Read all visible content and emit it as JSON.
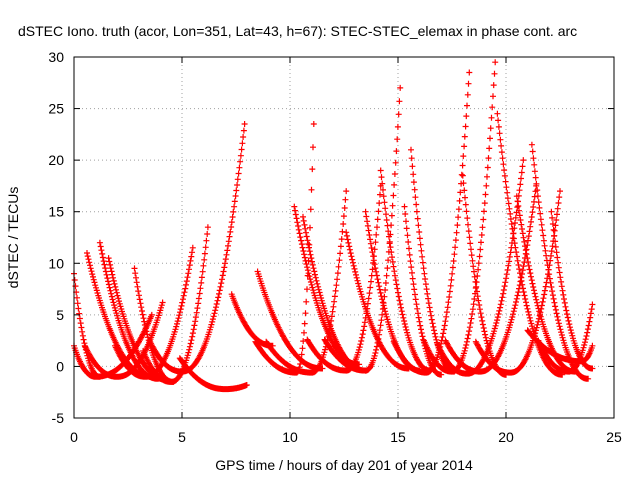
{
  "chart_data": {
    "type": "scatter",
    "title": "dSTEC Iono. truth (acor, Lon=351, Lat=43, h=67): STEC-STEC_elemax in phase cont. arc",
    "xlabel": "GPS time / hours of day 201 of year 2014",
    "ylabel": "dSTEC  / TECUs",
    "xlim": [
      0,
      25
    ],
    "ylim": [
      -5,
      30
    ],
    "xticks": [
      0,
      5,
      10,
      15,
      20,
      25
    ],
    "yticks": [
      -5,
      0,
      5,
      10,
      15,
      20,
      25,
      30
    ],
    "grid": true,
    "marker": "+",
    "series_color": "#ff0000",
    "arcs": [
      {
        "start": 0.0,
        "min_t": 0.0,
        "min_v": 9.0,
        "end": 1.2,
        "end_v": -1.0
      },
      {
        "start": 0.5,
        "min_t": 2.0,
        "min_v": -1.0,
        "end": 4.1,
        "end_v": 6.2
      },
      {
        "start": 0.0,
        "min_t": 1.0,
        "min_v": -1.0,
        "end": 3.6,
        "end_v": 5.0
      },
      {
        "start": 0.6,
        "min_t": 0.6,
        "min_v": 11.0,
        "end": 3.6,
        "end_v": -1.0
      },
      {
        "start": 1.2,
        "min_t": 1.2,
        "min_v": 12.0,
        "end": 3.9,
        "end_v": -1.2
      },
      {
        "start": 1.6,
        "min_t": 1.6,
        "min_v": 10.5,
        "end": 4.3,
        "end_v": -1.3
      },
      {
        "start": 1.9,
        "min_t": 3.3,
        "min_v": -1.0,
        "end": 5.5,
        "end_v": 11.5
      },
      {
        "start": 2.8,
        "min_t": 2.8,
        "min_v": 9.5,
        "end": 4.6,
        "end_v": -1.5
      },
      {
        "start": 3.2,
        "min_t": 4.5,
        "min_v": -1.5,
        "end": 6.2,
        "end_v": 13.5
      },
      {
        "start": 3.5,
        "min_t": 5.0,
        "min_v": -0.5,
        "end": 7.9,
        "end_v": 23.5
      },
      {
        "start": 4.9,
        "min_t": 7.0,
        "min_v": -2.2,
        "end": 8.0,
        "end_v": -1.8
      },
      {
        "start": 7.3,
        "min_t": 7.3,
        "min_v": 7.0,
        "end": 9.2,
        "end_v": 2.0
      },
      {
        "start": 8.5,
        "min_t": 8.5,
        "min_v": 9.2,
        "end": 11.5,
        "end_v": -0.2
      },
      {
        "start": 8.4,
        "min_t": 10.3,
        "min_v": -0.6,
        "end": 11.1,
        "end_v": 23.5
      },
      {
        "start": 8.9,
        "min_t": 11.0,
        "min_v": -0.6,
        "end": 12.6,
        "end_v": 17.0
      },
      {
        "start": 10.2,
        "min_t": 10.2,
        "min_v": 15.5,
        "end": 13.2,
        "end_v": 0.2
      },
      {
        "start": 10.6,
        "min_t": 10.6,
        "min_v": 14.5,
        "end": 13.5,
        "end_v": -0.4
      },
      {
        "start": 10.8,
        "min_t": 12.6,
        "min_v": -0.4,
        "end": 14.2,
        "end_v": 17.5
      },
      {
        "start": 11.6,
        "min_t": 13.5,
        "min_v": -0.4,
        "end": 15.1,
        "end_v": 27.0
      },
      {
        "start": 12.6,
        "min_t": 12.6,
        "min_v": 13.0,
        "end": 15.5,
        "end_v": -0.2
      },
      {
        "start": 13.5,
        "min_t": 13.5,
        "min_v": 15.0,
        "end": 16.0,
        "end_v": -0.4
      },
      {
        "start": 14.2,
        "min_t": 14.2,
        "min_v": 19.0,
        "end": 16.5,
        "end_v": -0.4
      },
      {
        "start": 14.8,
        "min_t": 16.3,
        "min_v": -0.6,
        "end": 18.3,
        "end_v": 28.5
      },
      {
        "start": 15.6,
        "min_t": 15.6,
        "min_v": 21.0,
        "end": 17.6,
        "end_v": -0.5
      },
      {
        "start": 15.3,
        "min_t": 15.3,
        "min_v": 15.5,
        "end": 17.0,
        "end_v": -0.8
      },
      {
        "start": 16.2,
        "min_t": 17.5,
        "min_v": -0.5,
        "end": 19.5,
        "end_v": 29.5
      },
      {
        "start": 16.8,
        "min_t": 18.2,
        "min_v": -0.7,
        "end": 20.8,
        "end_v": 20.0
      },
      {
        "start": 18.0,
        "min_t": 18.0,
        "min_v": 18.5,
        "end": 20.0,
        "end_v": -0.8
      },
      {
        "start": 17.2,
        "min_t": 18.8,
        "min_v": -0.5,
        "end": 21.4,
        "end_v": 17.5
      },
      {
        "start": 19.6,
        "min_t": 19.6,
        "min_v": 24.5,
        "end": 22.6,
        "end_v": -0.8
      },
      {
        "start": 18.6,
        "min_t": 20.2,
        "min_v": -0.6,
        "end": 22.5,
        "end_v": 17.0
      },
      {
        "start": 20.5,
        "min_t": 20.5,
        "min_v": 16.5,
        "end": 23.2,
        "end_v": -0.5
      },
      {
        "start": 21.2,
        "min_t": 21.2,
        "min_v": 21.5,
        "end": 23.8,
        "end_v": -1.2
      },
      {
        "start": 21.5,
        "min_t": 22.9,
        "min_v": -0.5,
        "end": 24.0,
        "end_v": 6.0
      },
      {
        "start": 22.1,
        "min_t": 22.1,
        "min_v": 15.0,
        "end": 24.0,
        "end_v": -0.2
      },
      {
        "start": 21.0,
        "min_t": 23.5,
        "min_v": 0.5,
        "end": 24.0,
        "end_v": 2.0
      }
    ]
  }
}
